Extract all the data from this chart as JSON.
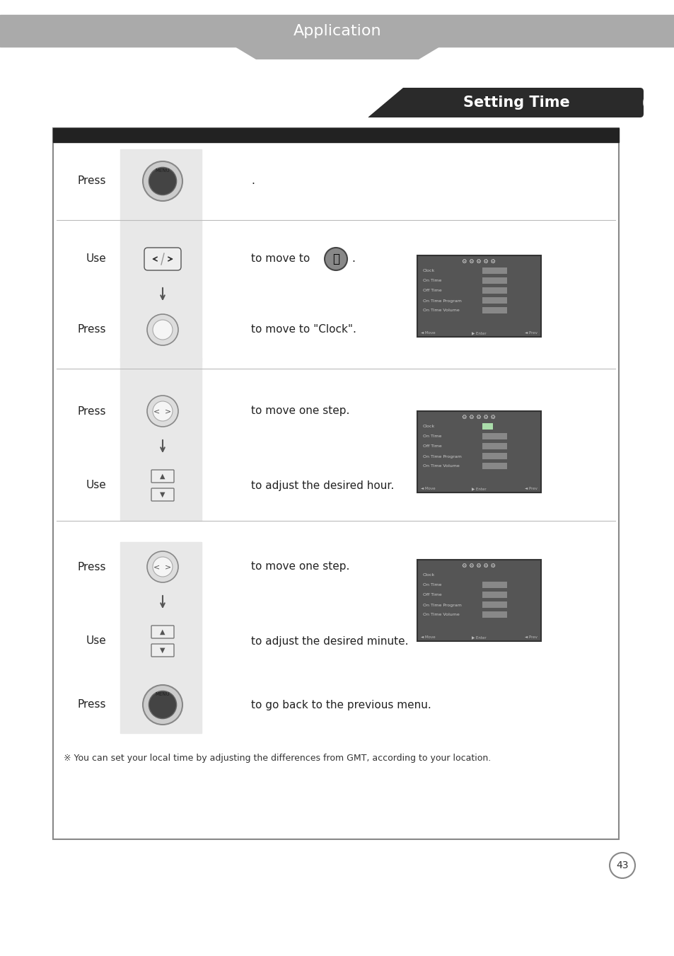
{
  "title": "Application",
  "subtitle": "Setting Time",
  "bg_color": "#ffffff",
  "header_color": "#aaaaaa",
  "dark_header_color": "#333333",
  "title_text_color": "#ffffff",
  "page_number": "43",
  "note_text": "※ You can set your local time by adjusting the differences from GMT, according to your location.",
  "rows": [
    {
      "label": "Press",
      "text": ".",
      "has_icon": "menu_circle",
      "has_image": false,
      "shaded": true
    },
    {
      "label": "Use",
      "text": "to move to",
      "has_icon": "nav_lr",
      "has_image": true,
      "img_idx": 0,
      "shaded": false
    },
    {
      "label": "",
      "text": "",
      "has_icon": "arrow_down",
      "has_image": false,
      "shaded": false
    },
    {
      "label": "Press",
      "text": "to move to \"Clock\".",
      "has_icon": "ok_button",
      "has_image": false,
      "shaded": false
    },
    {
      "label": "Press",
      "text": "to move one step.",
      "has_icon": "nav_step",
      "has_image": true,
      "img_idx": 1,
      "shaded": false
    },
    {
      "label": "",
      "text": "",
      "has_icon": "arrow_down",
      "has_image": false,
      "shaded": false
    },
    {
      "label": "Use",
      "text": "to adjust the desired hour.",
      "has_icon": "nav_updown",
      "has_image": false,
      "shaded": false
    },
    {
      "label": "Press",
      "text": "to move one step.",
      "has_icon": "nav_step",
      "has_image": true,
      "img_idx": 2,
      "shaded": false
    },
    {
      "label": "",
      "text": "",
      "has_icon": "arrow_down",
      "has_image": false,
      "shaded": false
    },
    {
      "label": "Use",
      "text": "to adjust the desired minute.",
      "has_icon": "nav_updown2",
      "has_image": false,
      "shaded": false
    },
    {
      "label": "Press",
      "text": "to go back to the previous menu.",
      "has_icon": "menu_circle",
      "has_image": false,
      "shaded": true
    }
  ]
}
